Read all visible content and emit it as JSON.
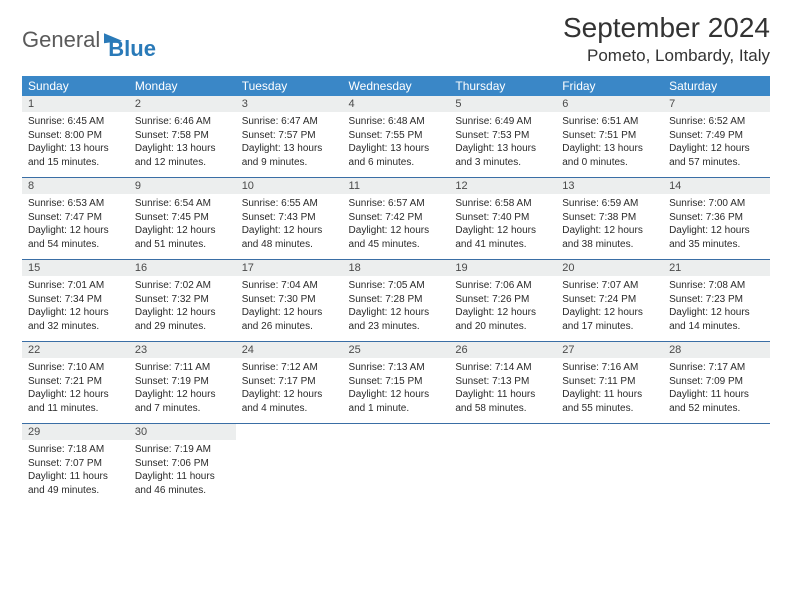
{
  "brand": {
    "word1": "General",
    "word2": "Blue"
  },
  "title": "September 2024",
  "location": "Pometo, Lombardy, Italy",
  "colors": {
    "header_bg": "#3a87c7",
    "header_text": "#ffffff",
    "daynum_bg": "#eceeee",
    "divider": "#3a6ea5",
    "text": "#2a2a2a",
    "brand_gray": "#5a5a5a",
    "brand_blue": "#2a7ab8"
  },
  "day_names": [
    "Sunday",
    "Monday",
    "Tuesday",
    "Wednesday",
    "Thursday",
    "Friday",
    "Saturday"
  ],
  "weeks": [
    [
      {
        "n": "1",
        "sr": "6:45 AM",
        "ss": "8:00 PM",
        "dl": "13 hours and 15 minutes."
      },
      {
        "n": "2",
        "sr": "6:46 AM",
        "ss": "7:58 PM",
        "dl": "13 hours and 12 minutes."
      },
      {
        "n": "3",
        "sr": "6:47 AM",
        "ss": "7:57 PM",
        "dl": "13 hours and 9 minutes."
      },
      {
        "n": "4",
        "sr": "6:48 AM",
        "ss": "7:55 PM",
        "dl": "13 hours and 6 minutes."
      },
      {
        "n": "5",
        "sr": "6:49 AM",
        "ss": "7:53 PM",
        "dl": "13 hours and 3 minutes."
      },
      {
        "n": "6",
        "sr": "6:51 AM",
        "ss": "7:51 PM",
        "dl": "13 hours and 0 minutes."
      },
      {
        "n": "7",
        "sr": "6:52 AM",
        "ss": "7:49 PM",
        "dl": "12 hours and 57 minutes."
      }
    ],
    [
      {
        "n": "8",
        "sr": "6:53 AM",
        "ss": "7:47 PM",
        "dl": "12 hours and 54 minutes."
      },
      {
        "n": "9",
        "sr": "6:54 AM",
        "ss": "7:45 PM",
        "dl": "12 hours and 51 minutes."
      },
      {
        "n": "10",
        "sr": "6:55 AM",
        "ss": "7:43 PM",
        "dl": "12 hours and 48 minutes."
      },
      {
        "n": "11",
        "sr": "6:57 AM",
        "ss": "7:42 PM",
        "dl": "12 hours and 45 minutes."
      },
      {
        "n": "12",
        "sr": "6:58 AM",
        "ss": "7:40 PM",
        "dl": "12 hours and 41 minutes."
      },
      {
        "n": "13",
        "sr": "6:59 AM",
        "ss": "7:38 PM",
        "dl": "12 hours and 38 minutes."
      },
      {
        "n": "14",
        "sr": "7:00 AM",
        "ss": "7:36 PM",
        "dl": "12 hours and 35 minutes."
      }
    ],
    [
      {
        "n": "15",
        "sr": "7:01 AM",
        "ss": "7:34 PM",
        "dl": "12 hours and 32 minutes."
      },
      {
        "n": "16",
        "sr": "7:02 AM",
        "ss": "7:32 PM",
        "dl": "12 hours and 29 minutes."
      },
      {
        "n": "17",
        "sr": "7:04 AM",
        "ss": "7:30 PM",
        "dl": "12 hours and 26 minutes."
      },
      {
        "n": "18",
        "sr": "7:05 AM",
        "ss": "7:28 PM",
        "dl": "12 hours and 23 minutes."
      },
      {
        "n": "19",
        "sr": "7:06 AM",
        "ss": "7:26 PM",
        "dl": "12 hours and 20 minutes."
      },
      {
        "n": "20",
        "sr": "7:07 AM",
        "ss": "7:24 PM",
        "dl": "12 hours and 17 minutes."
      },
      {
        "n": "21",
        "sr": "7:08 AM",
        "ss": "7:23 PM",
        "dl": "12 hours and 14 minutes."
      }
    ],
    [
      {
        "n": "22",
        "sr": "7:10 AM",
        "ss": "7:21 PM",
        "dl": "12 hours and 11 minutes."
      },
      {
        "n": "23",
        "sr": "7:11 AM",
        "ss": "7:19 PM",
        "dl": "12 hours and 7 minutes."
      },
      {
        "n": "24",
        "sr": "7:12 AM",
        "ss": "7:17 PM",
        "dl": "12 hours and 4 minutes."
      },
      {
        "n": "25",
        "sr": "7:13 AM",
        "ss": "7:15 PM",
        "dl": "12 hours and 1 minute."
      },
      {
        "n": "26",
        "sr": "7:14 AM",
        "ss": "7:13 PM",
        "dl": "11 hours and 58 minutes."
      },
      {
        "n": "27",
        "sr": "7:16 AM",
        "ss": "7:11 PM",
        "dl": "11 hours and 55 minutes."
      },
      {
        "n": "28",
        "sr": "7:17 AM",
        "ss": "7:09 PM",
        "dl": "11 hours and 52 minutes."
      }
    ],
    [
      {
        "n": "29",
        "sr": "7:18 AM",
        "ss": "7:07 PM",
        "dl": "11 hours and 49 minutes."
      },
      {
        "n": "30",
        "sr": "7:19 AM",
        "ss": "7:06 PM",
        "dl": "11 hours and 46 minutes."
      },
      null,
      null,
      null,
      null,
      null
    ]
  ],
  "labels": {
    "sunrise": "Sunrise: ",
    "sunset": "Sunset: ",
    "daylight": "Daylight: "
  }
}
